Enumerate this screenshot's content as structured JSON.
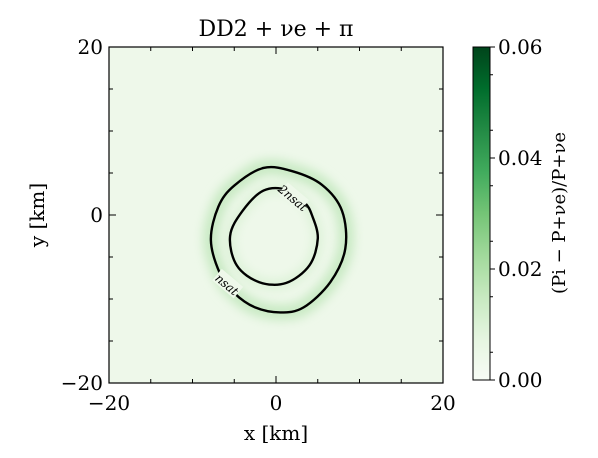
{
  "chart_data": {
    "type": "heatmap",
    "title": "DD2 + νe + π",
    "xlabel": "x [km]",
    "ylabel": "y [km]",
    "xlim": [
      -20,
      20
    ],
    "ylim": [
      -20,
      20
    ],
    "x_ticks": [
      "−20",
      "0",
      "20"
    ],
    "y_ticks": [
      "−20",
      "0",
      "20"
    ],
    "grid": false,
    "colormap": [
      "#f7fcf5",
      "#00441b"
    ],
    "colorbar": {
      "label": "(Pi − P+νe)/P+νe",
      "range": [
        0.0,
        0.06
      ],
      "ticks": [
        "0.00",
        "0.02",
        "0.04",
        "0.06"
      ],
      "tick_values": [
        0.0,
        0.02,
        0.04,
        0.06
      ]
    },
    "background_value": 0.004,
    "contours": [
      {
        "label": "2nsat",
        "points": [
          [
            1.3,
            3.0
          ],
          [
            -1.5,
            2.9
          ],
          [
            -4.0,
            0.5
          ],
          [
            -5.5,
            -2.5
          ],
          [
            -4.7,
            -6.0
          ],
          [
            -2.0,
            -8.0
          ],
          [
            1.2,
            -8.1
          ],
          [
            4.0,
            -6.0
          ],
          [
            5.0,
            -2.8
          ],
          [
            4.3,
            0.0
          ],
          [
            3.4,
            1.5
          ]
        ]
      },
      {
        "label": "nsat",
        "points": [
          [
            -1.5,
            5.6
          ],
          [
            2.0,
            5.2
          ],
          [
            5.5,
            3.6
          ],
          [
            7.9,
            0.5
          ],
          [
            8.3,
            -4.0
          ],
          [
            6.5,
            -8.0
          ],
          [
            3.3,
            -11.0
          ],
          [
            0.5,
            -11.6
          ],
          [
            -2.5,
            -11.0
          ],
          [
            -5.0,
            -9.3
          ],
          [
            -6.7,
            -7.0
          ],
          [
            -7.8,
            -3.0
          ],
          [
            -6.9,
            1.0
          ],
          [
            -5.0,
            3.5
          ]
        ]
      }
    ],
    "contour_labels": [
      {
        "text": "2nsat",
        "x": 2.0,
        "y": 2.0
      },
      {
        "text": "nsat",
        "x": -5.9,
        "y": -8.3
      }
    ],
    "highlight_band": {
      "peak_value": 0.012,
      "description_free": true
    }
  }
}
